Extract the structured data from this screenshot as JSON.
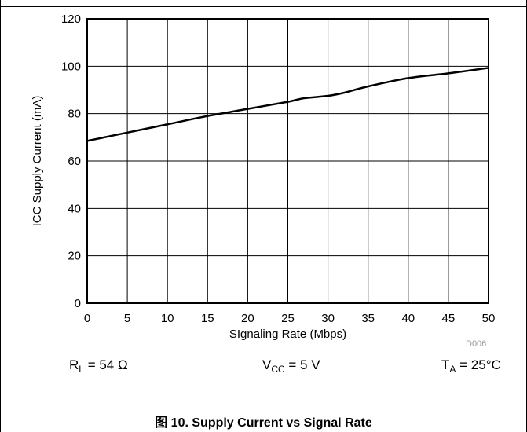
{
  "chart_data": {
    "type": "line",
    "xlabel": "SIgnaling Rate (Mbps)",
    "ylabel": "ICC Supply Current (mA)",
    "xlim": [
      0,
      50
    ],
    "ylim": [
      0,
      120
    ],
    "x_ticks": [
      "0",
      "5",
      "10",
      "15",
      "20",
      "25",
      "30",
      "35",
      "40",
      "45",
      "50"
    ],
    "y_ticks": [
      "0",
      "20",
      "40",
      "60",
      "80",
      "100",
      "120"
    ],
    "grid": true,
    "series": [
      {
        "x": [
          0,
          5,
          10,
          15,
          20,
          25,
          27,
          30,
          32,
          35,
          40,
          45,
          50
        ],
        "values": [
          68.5,
          72,
          75.5,
          79,
          82,
          85,
          86.5,
          87.5,
          88.8,
          91.5,
          95,
          97,
          99.3
        ]
      }
    ],
    "line_color": "#000000",
    "grid_color": "#000000"
  },
  "conditions": {
    "rl_main": "R",
    "rl_sub": "L",
    "rl_value": " = 54 Ω",
    "vcc_main": "V",
    "vcc_sub": "CC",
    "vcc_value": " = 5 V",
    "ta_main": "T",
    "ta_sub": "A",
    "ta_value": " = 25°C"
  },
  "figure_code": "D006",
  "caption": "图 10. Supply Current vs Signal Rate"
}
